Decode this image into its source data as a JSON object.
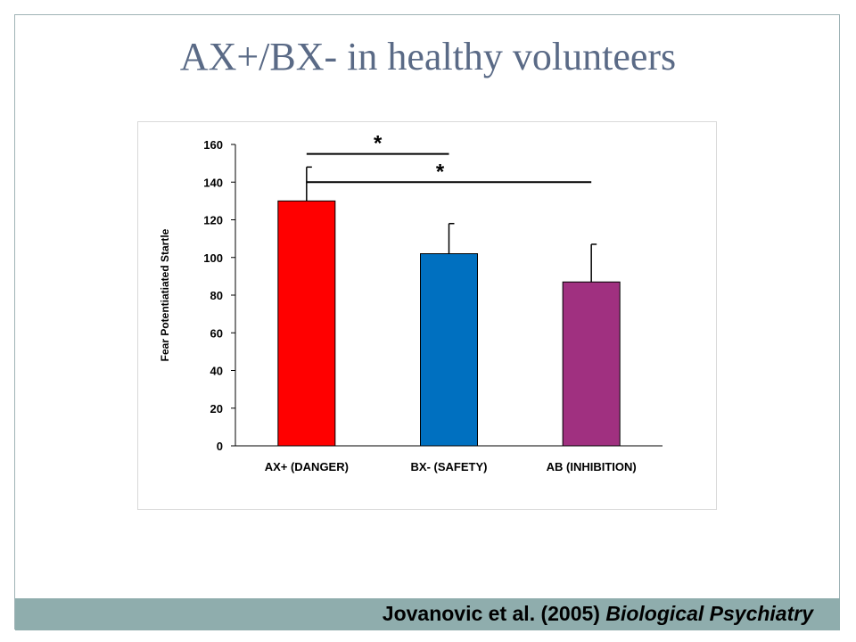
{
  "slide": {
    "title": "AX+/BX- in healthy volunteers"
  },
  "footer": {
    "citation_authors": "Jovanovic et al. (2005)",
    "citation_journal": "Biological Psychiatry",
    "color": "#8fadad"
  },
  "chart_data": {
    "type": "bar",
    "ylabel": "Fear Potentiatiated Startle",
    "xlabel": "",
    "ylim": [
      0,
      160
    ],
    "yticks": [
      0,
      20,
      40,
      60,
      80,
      100,
      120,
      140,
      160
    ],
    "categories": [
      "AX+ (DANGER)",
      "BX- (SAFETY)",
      "AB (INHIBITION)"
    ],
    "values": [
      130,
      102,
      87
    ],
    "error_upper": [
      148,
      118,
      107
    ],
    "colors": [
      "#ff0000",
      "#0070c0",
      "#a03080"
    ],
    "significance": [
      {
        "from": 0,
        "to": 1,
        "label": "*",
        "y": 155
      },
      {
        "from": 0,
        "to": 2,
        "label": "*",
        "y": 140
      }
    ],
    "grid": false
  }
}
